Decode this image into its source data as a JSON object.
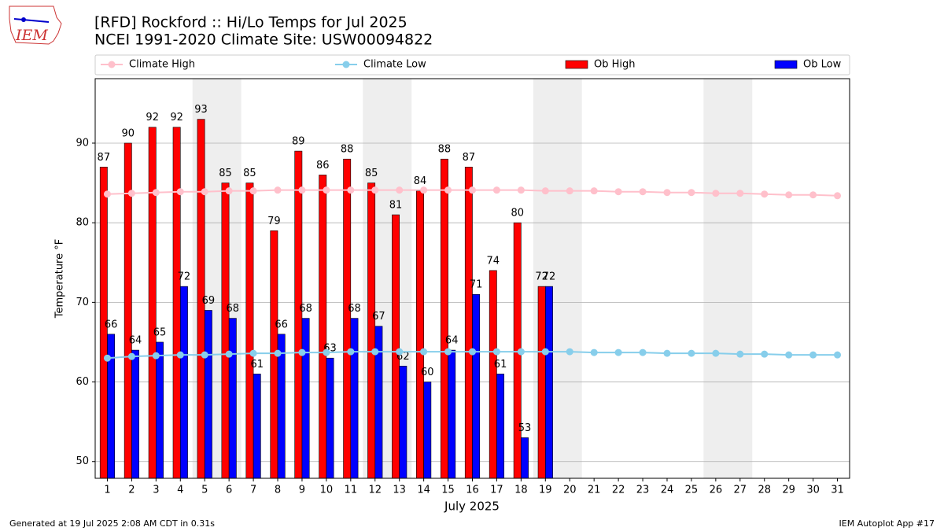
{
  "chart_data": {
    "type": "bar",
    "title": "[RFD] Rockford :: Hi/Lo Temps for Jul 2025",
    "subtitle": "NCEI 1991-2020 Climate Site: USW00094822",
    "logo_text": "IEM",
    "xlabel": "July 2025",
    "ylabel": "Temperature $^\\circ$F",
    "footer_left": "Generated at 19 Jul 2025 2:08 AM CDT in 0.31s",
    "footer_right": "IEM Autoplot App #17",
    "x": [
      1,
      2,
      3,
      4,
      5,
      6,
      7,
      8,
      9,
      10,
      11,
      12,
      13,
      14,
      15,
      16,
      17,
      18,
      19,
      20,
      21,
      22,
      23,
      24,
      25,
      26,
      27,
      28,
      29,
      30,
      31
    ],
    "xlim": [
      0.5,
      31.5
    ],
    "xticks": [
      1,
      2,
      3,
      4,
      5,
      6,
      7,
      8,
      9,
      10,
      11,
      12,
      13,
      14,
      15,
      16,
      17,
      18,
      19,
      20,
      21,
      22,
      23,
      24,
      25,
      26,
      27,
      28,
      29,
      30,
      31
    ],
    "ylim": [
      47.9,
      98.1
    ],
    "yticks": [
      50,
      60,
      70,
      80,
      90
    ],
    "grid": true,
    "shaded_ranges": [
      [
        5,
        6
      ],
      [
        12,
        13
      ],
      [
        19,
        20
      ],
      [
        26,
        27
      ]
    ],
    "series": [
      {
        "name": "Climate High",
        "type": "line",
        "color": "#ffc0cb",
        "values": [
          83.6,
          83.7,
          83.8,
          83.9,
          83.9,
          84.0,
          84.0,
          84.1,
          84.1,
          84.1,
          84.1,
          84.1,
          84.1,
          84.1,
          84.1,
          84.1,
          84.1,
          84.1,
          84.0,
          84.0,
          84.0,
          83.9,
          83.9,
          83.8,
          83.8,
          83.7,
          83.7,
          83.6,
          83.5,
          83.5,
          83.4
        ]
      },
      {
        "name": "Climate Low",
        "type": "line",
        "color": "#87ceeb",
        "values": [
          63.0,
          63.2,
          63.3,
          63.4,
          63.4,
          63.5,
          63.6,
          63.6,
          63.7,
          63.7,
          63.8,
          63.8,
          63.8,
          63.8,
          63.8,
          63.8,
          63.8,
          63.8,
          63.8,
          63.8,
          63.7,
          63.7,
          63.7,
          63.6,
          63.6,
          63.6,
          63.5,
          63.5,
          63.4,
          63.4,
          63.4
        ]
      },
      {
        "name": "Ob High",
        "type": "bar",
        "color": "#ff0000",
        "values": [
          87,
          90,
          92,
          92,
          93,
          85,
          85,
          79,
          89,
          86,
          88,
          85,
          81,
          84,
          88,
          87,
          74,
          80,
          72,
          null,
          null,
          null,
          null,
          null,
          null,
          null,
          null,
          null,
          null,
          null,
          null
        ]
      },
      {
        "name": "Ob Low",
        "type": "bar",
        "color": "#0000ff",
        "values": [
          66,
          64,
          65,
          72,
          69,
          68,
          61,
          66,
          68,
          63,
          68,
          67,
          62,
          60,
          64,
          71,
          61,
          53,
          72,
          null,
          null,
          null,
          null,
          null,
          null,
          null,
          null,
          null,
          null,
          null,
          null
        ]
      }
    ]
  }
}
